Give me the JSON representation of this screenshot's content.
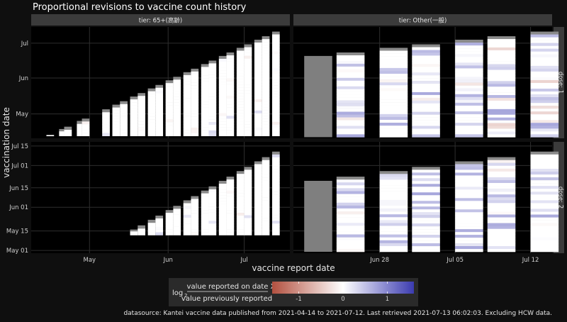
{
  "title": "Proportional revisions to vaccine count history",
  "colors": {
    "background": "#0f0f0f",
    "panel": "#000000",
    "strip": "#3b3b3b",
    "grid": "#2e2e2e",
    "cell_base": "#ffffff",
    "cell_latest": "#7f7f7f",
    "legend_low": "#b2503f",
    "legend_mid": "#ffffff",
    "legend_high": "#3b3bb0"
  },
  "chart_data": {
    "type": "heatmap",
    "xlabel": "vaccine report date",
    "ylabel": "vaccination date",
    "facets": {
      "columns": [
        "tier: 65+(高齢)",
        "tier: Other(一般)"
      ],
      "rows": [
        "dose: 1",
        "dose: 2"
      ]
    },
    "x_ticks": {
      "tier: 65+(高齢)": [
        "May",
        "Jun",
        "Jul"
      ],
      "tier: Other(一般)": [
        "Jun 28",
        "Jul 05",
        "Jul 12"
      ]
    },
    "y_ticks": {
      "dose: 1": [
        "May",
        "Jun",
        "Jul"
      ],
      "dose: 2": [
        "May 01",
        "May 15",
        "Jun 01",
        "Jun 15",
        "Jul 01",
        "Jul 15"
      ]
    },
    "x_range": {
      "tier: 65+(高齢)": [
        "2021-04-08",
        "2021-07-19"
      ],
      "tier: Other(一般)": [
        "2021-06-20",
        "2021-07-14"
      ]
    },
    "y_range": {
      "dose: 1": [
        "2021-04-10",
        "2021-07-15"
      ],
      "dose: 2": [
        "2021-04-29",
        "2021-07-18"
      ]
    },
    "report_dates": {
      "tier: 65+(高齢)": [
        "2021-04-14",
        "2021-04-19",
        "2021-04-21",
        "2021-04-26",
        "2021-04-28",
        "2021-05-06",
        "2021-05-10",
        "2021-05-13",
        "2021-05-17",
        "2021-05-20",
        "2021-05-24",
        "2021-05-27",
        "2021-05-31",
        "2021-06-03",
        "2021-06-07",
        "2021-06-10",
        "2021-06-14",
        "2021-06-17",
        "2021-06-21",
        "2021-06-24",
        "2021-06-28",
        "2021-07-01",
        "2021-07-05",
        "2021-07-08",
        "2021-07-12"
      ],
      "tier: Other(一般)": [
        "2021-06-21",
        "2021-06-24",
        "2021-06-28",
        "2021-07-01",
        "2021-07-05",
        "2021-07-08",
        "2021-07-12"
      ]
    },
    "legend": {
      "title_prefix": "log",
      "title_subscript": "2",
      "numerator": "value reported on date X",
      "denominator": "value previously reported",
      "ticks": [
        "-1",
        "0",
        "1"
      ],
      "range": [
        -1.6,
        1.6
      ]
    }
  },
  "caption": "datasource: Kantei vaccine data published from 2021-04-14 to 2021-07-12. Last retrieved 2021-07-13 06:02:03. Excluding HCW data."
}
